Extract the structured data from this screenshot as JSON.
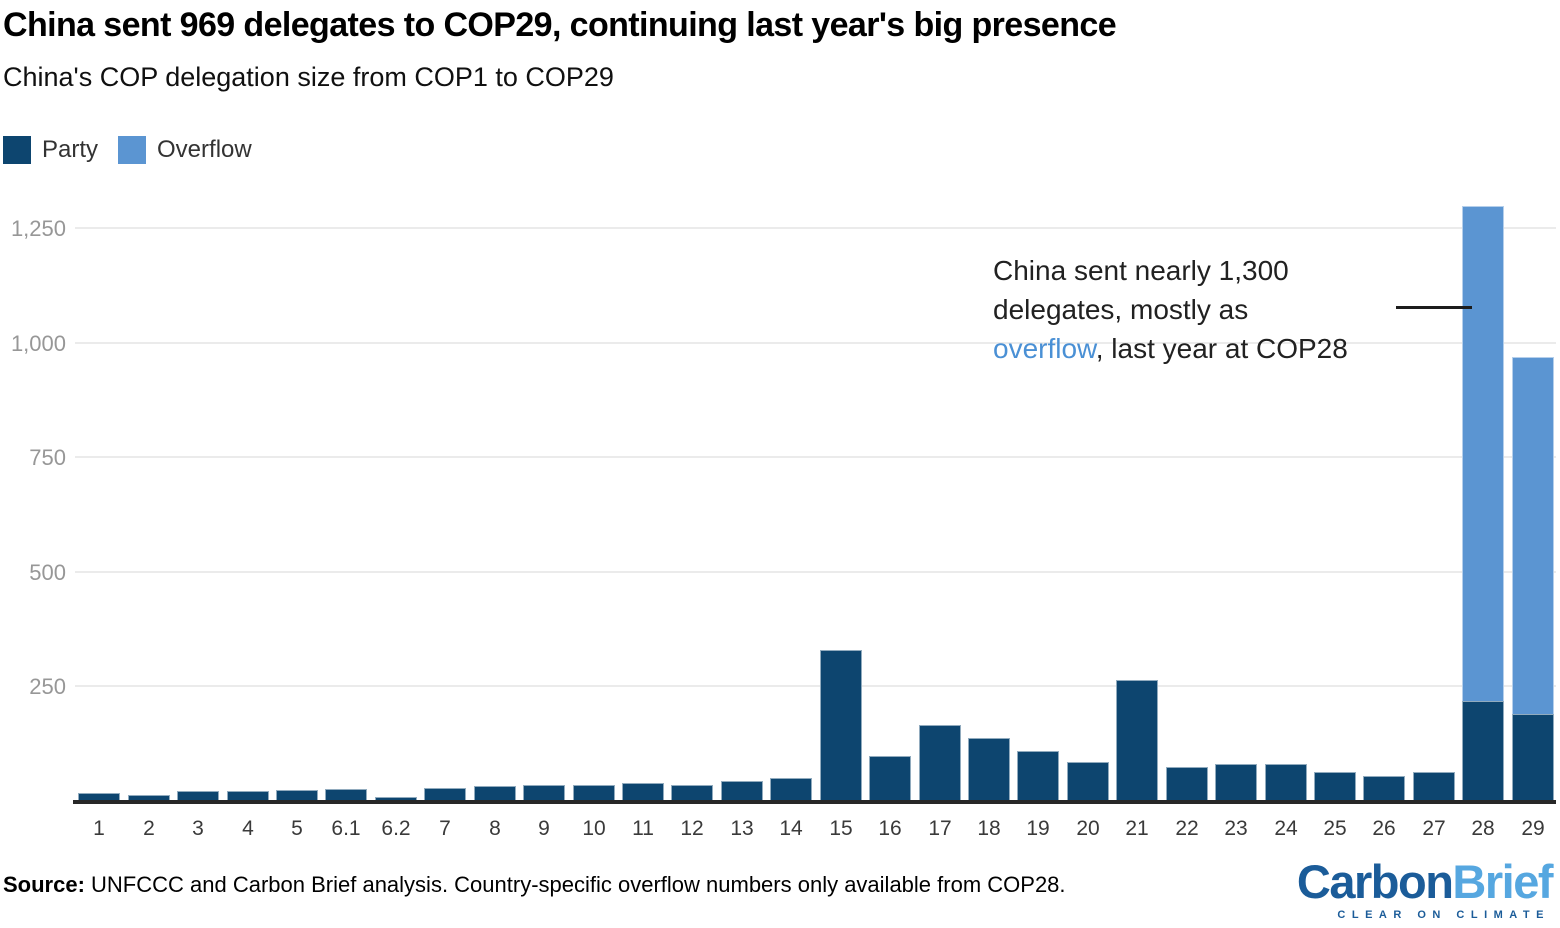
{
  "header": {
    "title": "China sent 969 delegates to COP29, continuing last year's big presence",
    "subtitle": "China's COP delegation size from COP1 to COP29"
  },
  "legend": {
    "items": [
      {
        "label": "Party",
        "color": "#0d456f"
      },
      {
        "label": "Overflow",
        "color": "#5b95d2"
      }
    ]
  },
  "chart_data": {
    "type": "bar",
    "stacked": true,
    "title": "China's COP delegation size from COP1 to COP29",
    "categories": [
      "1",
      "2",
      "3",
      "4",
      "5",
      "6.1",
      "6.2",
      "7",
      "8",
      "9",
      "10",
      "11",
      "12",
      "13",
      "14",
      "15",
      "16",
      "17",
      "18",
      "19",
      "20",
      "21",
      "22",
      "23",
      "24",
      "25",
      "26",
      "27",
      "28",
      "29"
    ],
    "series": [
      {
        "name": "Party",
        "color": "#0d456f",
        "values": [
          18,
          13,
          21,
          22,
          24,
          27,
          9,
          28,
          32,
          34,
          35,
          39,
          34,
          44,
          50,
          330,
          98,
          165,
          138,
          109,
          85,
          264,
          75,
          81,
          81,
          63,
          54,
          63,
          219,
          190
        ]
      },
      {
        "name": "Overflow",
        "color": "#5b95d2",
        "values": [
          0,
          0,
          0,
          0,
          0,
          0,
          0,
          0,
          0,
          0,
          0,
          0,
          0,
          0,
          0,
          0,
          0,
          0,
          0,
          0,
          0,
          0,
          0,
          0,
          0,
          0,
          0,
          0,
          1079,
          779
        ]
      }
    ],
    "totals_note": "COP28 total = 1298 (nearly 1,300); COP29 total = 969",
    "ylim": [
      0,
      1350
    ],
    "yticks": [
      {
        "value": 250,
        "label": "250"
      },
      {
        "value": 500,
        "label": "500"
      },
      {
        "value": 750,
        "label": "750"
      },
      {
        "value": 1000,
        "label": "1,000"
      },
      {
        "value": 1250,
        "label": "1,250"
      }
    ],
    "grid": true,
    "legend_position": "top-left",
    "xlabel": "",
    "ylabel": ""
  },
  "annotation": {
    "accent_color": "#4a90d5",
    "lines": [
      [
        {
          "text": "China sent nearly 1,300"
        }
      ],
      [
        {
          "text": "delegates, mostly as"
        }
      ],
      [
        {
          "text": "overflow",
          "accent": true
        },
        {
          "text": ", last year at COP28"
        }
      ]
    ]
  },
  "footer": {
    "source_label": "Source:",
    "source_text": " UNFCCC and Carbon Brief analysis. Country-specific overflow numbers only available from COP28.",
    "logo": {
      "part1": "Carbon",
      "part2": "Brief",
      "part1_color": "#1b5c99",
      "part2_color": "#56a7e0",
      "tagline": "CLEAR ON CLIMATE"
    }
  }
}
